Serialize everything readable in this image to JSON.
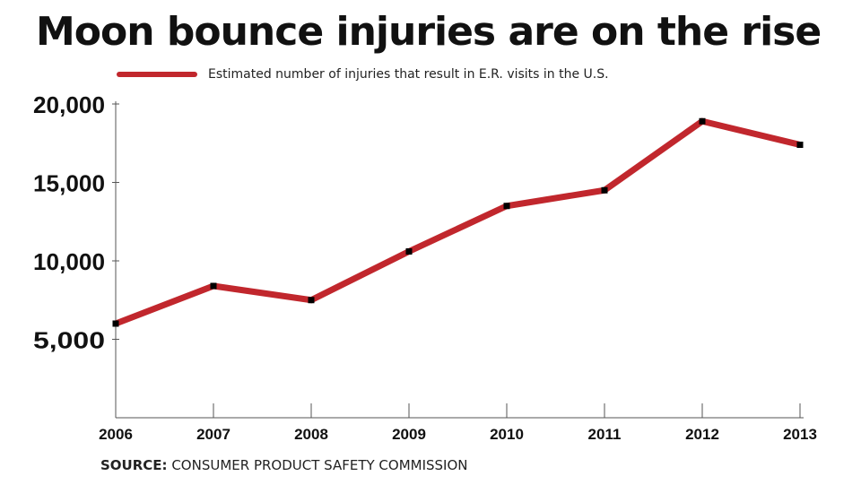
{
  "header": {
    "title": "Moon bounce injuries are on the rise"
  },
  "footer": {
    "source_prefix": "SOURCE:",
    "source_text": "CONSUMER PRODUCT SAFETY COMMISSION"
  },
  "chart_data": {
    "type": "line",
    "title": "Moon bounce injuries are on the rise",
    "xlabel": "",
    "ylabel": "",
    "x": [
      "2006",
      "2007",
      "2008",
      "2009",
      "2010",
      "2011",
      "2012",
      "2013"
    ],
    "series": [
      {
        "name": "Estimated number of injuries that result in E.R. visits in the U.S.",
        "color": "#c1272d",
        "values": [
          6000,
          8400,
          7500,
          10600,
          13500,
          14500,
          18900,
          17400
        ]
      }
    ],
    "y_ticks": [
      "5,000",
      "10,000",
      "15,000",
      "20,000"
    ],
    "y_tick_values": [
      5000,
      10000,
      15000,
      20000
    ],
    "ylim": [
      0,
      20000
    ],
    "grid": false,
    "legend_position": "top-left",
    "marker_color": "#000000"
  }
}
